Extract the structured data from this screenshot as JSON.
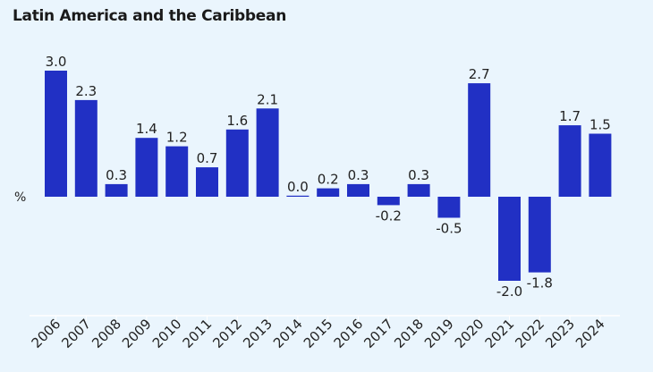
{
  "chart_data": {
    "type": "bar",
    "title": "Latin America and the Caribbean",
    "ylabel": "%",
    "xlabel": "",
    "categories": [
      "2006",
      "2007",
      "2008",
      "2009",
      "2010",
      "2011",
      "2012",
      "2013",
      "2014",
      "2015",
      "2016",
      "2017",
      "2018",
      "2019",
      "2020",
      "2021",
      "2022",
      "2023",
      "2024"
    ],
    "values": [
      3.0,
      2.3,
      0.3,
      1.4,
      1.2,
      0.7,
      1.6,
      2.1,
      0.0,
      0.2,
      0.3,
      -0.2,
      0.3,
      -0.5,
      2.7,
      -2.0,
      -1.8,
      1.7,
      1.5
    ],
    "labels": [
      "3.0",
      "2.3",
      "0.3",
      "1.4",
      "1.2",
      "0.7",
      "1.6",
      "2.1",
      "0.0",
      "0.2",
      "0.3",
      "-0.2",
      "0.3",
      "-0.5",
      "2.7",
      "-2.0",
      "-1.8",
      "1.7",
      "1.5"
    ],
    "ylim": [
      -2.8,
      3.0
    ],
    "grid": false,
    "bar_color": "#2130c4",
    "background": "#eaf5fd"
  }
}
